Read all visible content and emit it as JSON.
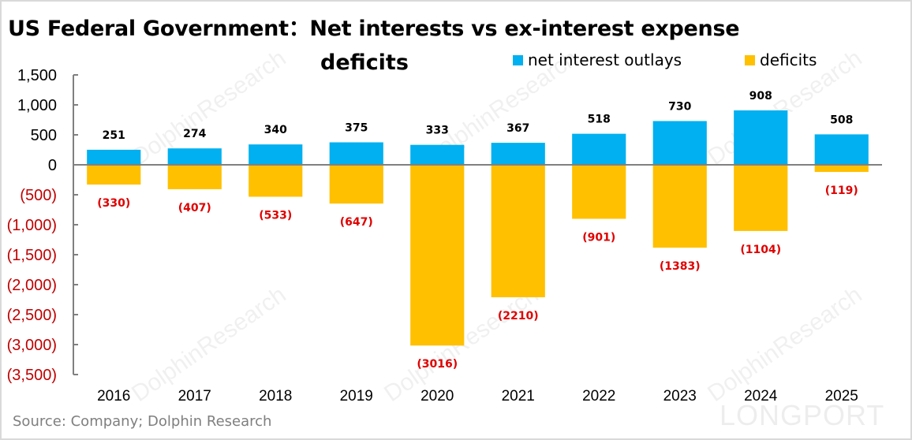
{
  "title_line1": "US Federal Government：Net interests vs ex-interest expense",
  "title_line2": "deficits",
  "source": "Source: Company; Dolphin Research",
  "watermark_text": "DolphinResearch",
  "watermark_brand": "LONGPORT",
  "colors": {
    "net_interest": "#00B0F0",
    "deficits": "#FFC000",
    "negative_label": "#E00000",
    "positive_label": "#000000",
    "axis": "#808080"
  },
  "legend": [
    {
      "label": "net interest outlays",
      "color": "#00B0F0"
    },
    {
      "label": "deficits",
      "color": "#FFC000"
    }
  ],
  "chart_data": {
    "type": "bar",
    "title": "US Federal Government：Net interests vs ex-interest expense deficits",
    "xlabel": "",
    "ylabel": "",
    "categories": [
      "2016",
      "2017",
      "2018",
      "2019",
      "2020",
      "2021",
      "2022",
      "2023",
      "2024",
      "2025"
    ],
    "series": [
      {
        "name": "net interest outlays",
        "values": [
          251,
          274,
          340,
          375,
          333,
          367,
          518,
          730,
          908,
          508
        ]
      },
      {
        "name": "deficits",
        "values": [
          -330,
          -407,
          -533,
          -647,
          -3016,
          -2210,
          -901,
          -1383,
          -1104,
          -119
        ]
      }
    ],
    "data_labels": {
      "net interest outlays": [
        "251",
        "274",
        "340",
        "375",
        "333",
        "367",
        "518",
        "730",
        "908",
        "508"
      ],
      "deficits": [
        "(330)",
        "(407)",
        "(533)",
        "(647)",
        "(3016)",
        "(2210)",
        "(901)",
        "(1383)",
        "(1104)",
        "(119)"
      ]
    },
    "ylim": [
      -3500,
      1500
    ],
    "yticks": [
      1500,
      1000,
      500,
      0,
      -500,
      -1000,
      -1500,
      -2000,
      -2500,
      -3000,
      -3500
    ],
    "ytick_labels": [
      "1,500",
      "1,000",
      "500",
      "0",
      "(500)",
      "(1,000)",
      "(1,500)",
      "(2,000)",
      "(2,500)",
      "(3,000)",
      "(3,500)"
    ],
    "stacked": true,
    "grid": false,
    "legend_position": "top-right"
  }
}
